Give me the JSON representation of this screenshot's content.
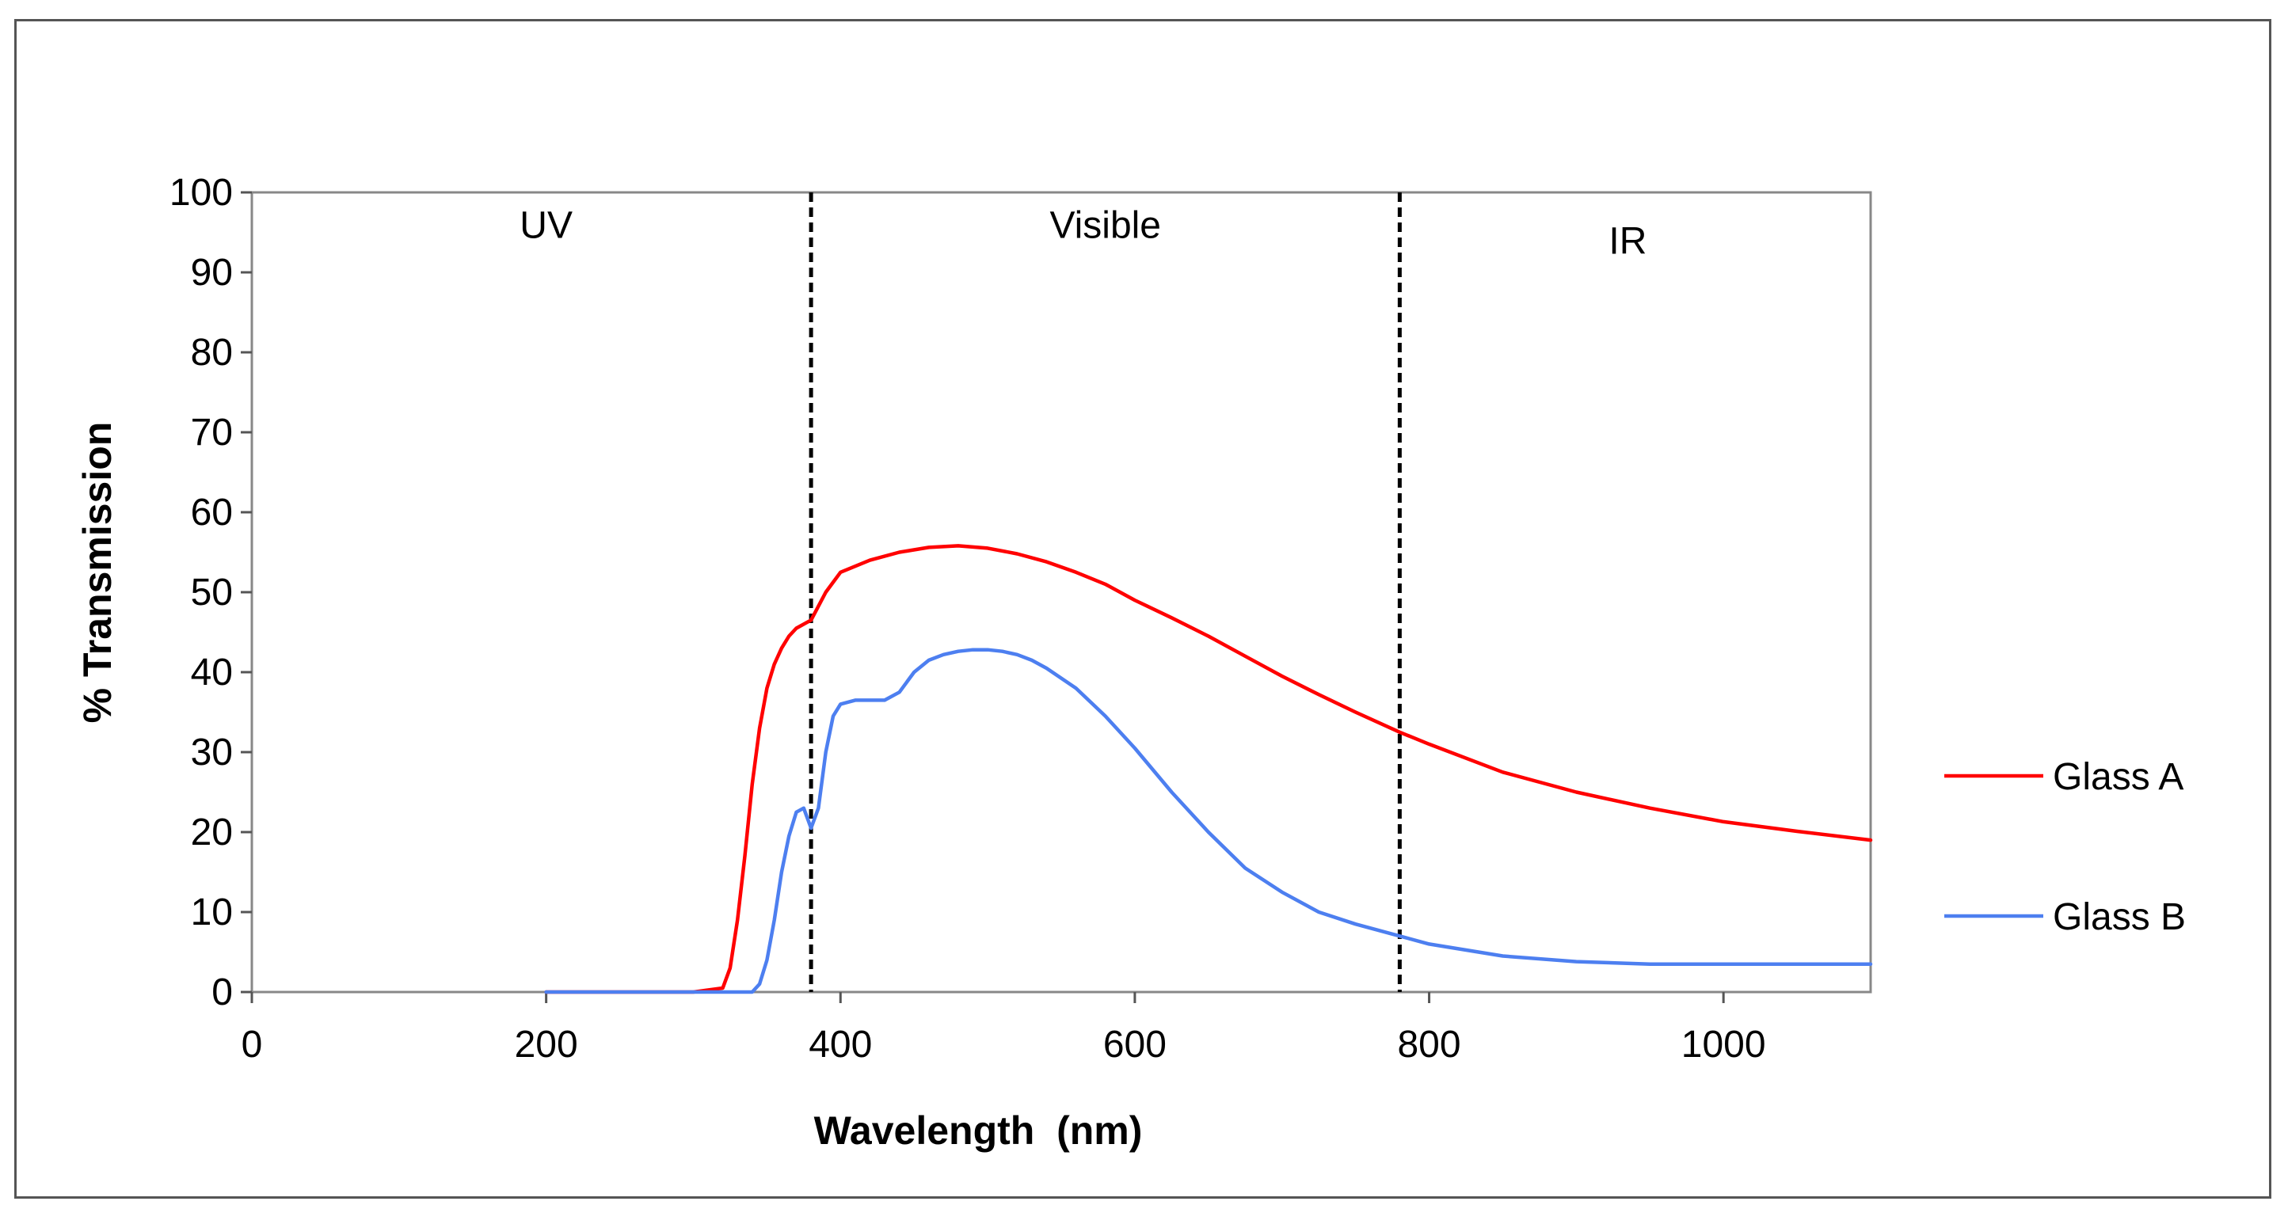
{
  "chart_data": {
    "type": "line",
    "title": "",
    "xlabel": "Wavelength  (nm)",
    "ylabel": "% Transmission",
    "xlim": [
      0,
      1100
    ],
    "ylim": [
      0,
      100
    ],
    "xticks": [
      0,
      200,
      400,
      600,
      800,
      1000
    ],
    "yticks": [
      0,
      10,
      20,
      30,
      40,
      50,
      60,
      70,
      80,
      90,
      100
    ],
    "grid": false,
    "legend_position": "right",
    "regions": [
      {
        "label": "UV",
        "x": 200,
        "y": 96
      },
      {
        "label": "Visible",
        "x": 580,
        "y": 96
      },
      {
        "label": "IR",
        "x": 935,
        "y": 94
      }
    ],
    "boundaries": [
      380,
      780
    ],
    "series": [
      {
        "name": "Glass A",
        "color": "#ff0000",
        "x": [
          200,
          300,
          320,
          325,
          330,
          335,
          340,
          345,
          350,
          355,
          360,
          365,
          370,
          380,
          390,
          400,
          420,
          440,
          460,
          480,
          500,
          520,
          540,
          560,
          580,
          600,
          625,
          650,
          675,
          700,
          725,
          750,
          780,
          800,
          850,
          900,
          950,
          1000,
          1050,
          1100
        ],
        "y": [
          0,
          0,
          0.5,
          3,
          9,
          17,
          26,
          33,
          38,
          41,
          43,
          44.5,
          45.5,
          46.5,
          50,
          52.5,
          54,
          55,
          55.6,
          55.8,
          55.5,
          54.8,
          53.8,
          52.5,
          51,
          49,
          46.8,
          44.5,
          42,
          39.5,
          37.2,
          35,
          32.5,
          31,
          27.5,
          25,
          23,
          21.3,
          20.1,
          19
        ]
      },
      {
        "name": "Glass B",
        "color": "#4d7ff0",
        "x": [
          200,
          340,
          345,
          350,
          355,
          360,
          365,
          370,
          375,
          380,
          385,
          390,
          395,
          400,
          410,
          420,
          430,
          440,
          450,
          460,
          470,
          480,
          490,
          500,
          510,
          520,
          530,
          540,
          560,
          580,
          600,
          625,
          650,
          675,
          700,
          725,
          750,
          780,
          800,
          850,
          900,
          950,
          1000,
          1050,
          1100
        ],
        "y": [
          0,
          0,
          1,
          4,
          9,
          15,
          19.5,
          22.5,
          23,
          20.5,
          23,
          30,
          34.5,
          36,
          36.5,
          36.5,
          36.5,
          37.5,
          40,
          41.5,
          42.2,
          42.6,
          42.8,
          42.8,
          42.6,
          42.2,
          41.5,
          40.5,
          38,
          34.5,
          30.5,
          25,
          20,
          15.5,
          12.5,
          10,
          8.5,
          7,
          6,
          4.5,
          3.8,
          3.5,
          3.5,
          3.5,
          3.5
        ]
      }
    ]
  }
}
